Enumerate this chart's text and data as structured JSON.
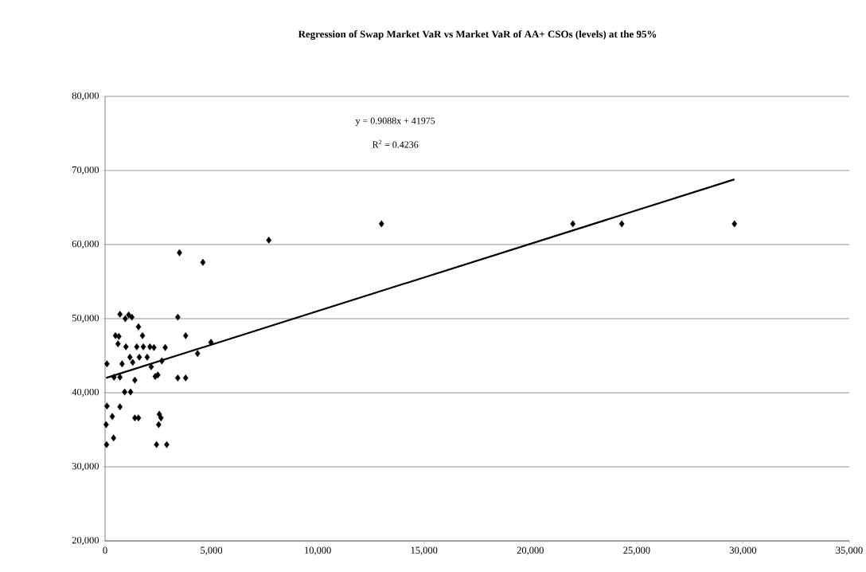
{
  "chart_data": {
    "type": "scatter",
    "title": "Regression of Swap Market VaR vs Market VaR of AA+ CSOs (levels) at the 95%",
    "annotations": [
      "y = 0.9088x + 41975",
      "R$^{2}$ = 0.4236"
    ],
    "series": [
      {
        "color": "#000000",
        "marker": "diamond",
        "x": [
          700,
          1110,
          950,
          1260,
          3420,
          1570,
          490,
          650,
          3790,
          1760,
          610,
          980,
          1490,
          1800,
          2110,
          2300,
          2830,
          4980,
          1170,
          1610,
          1980,
          4350,
          90,
          800,
          1300,
          2670,
          2170,
          420,
          700,
          2360,
          2480,
          3420,
          3790,
          1400,
          920,
          1200,
          90,
          700,
          340,
          1400,
          1570,
          2550,
          2630,
          50,
          2520,
          400,
          70,
          2420,
          2900,
          3500,
          4600,
          7700,
          13000,
          22000,
          24300,
          29600
        ],
        "values": [
          50600,
          50500,
          50000,
          50200,
          50200,
          48900,
          47700,
          47600,
          47700,
          47700,
          46600,
          46200,
          46200,
          46200,
          46200,
          46100,
          46100,
          46800,
          44800,
          44800,
          44800,
          45300,
          43900,
          43900,
          44100,
          44300,
          43500,
          42100,
          42100,
          42200,
          42400,
          42000,
          42000,
          41700,
          40100,
          40100,
          38200,
          38100,
          36800,
          36600,
          36600,
          37100,
          36600,
          35700,
          35700,
          33900,
          33000,
          33000,
          33000,
          58900,
          57600,
          60600,
          62800,
          62800,
          62800,
          62800
        ]
      },
      {
        "type": "line",
        "color": "#000000",
        "marker": "none",
        "x": [
          50,
          29600
        ],
        "values": [
          42000,
          68800
        ]
      }
    ],
    "xlim": [
      0,
      35000
    ],
    "ylim": [
      20000,
      80000
    ],
    "xticks": [
      0,
      {
        "value": 5000,
        "label": "5,000"
      },
      {
        "value": 10000,
        "label": "10,000"
      },
      {
        "value": 15000,
        "label": "15,000"
      },
      {
        "value": 20000,
        "label": "20,000"
      },
      {
        "value": 25000,
        "label": "25,000"
      },
      {
        "value": 30000,
        "label": "30,000"
      },
      {
        "value": 35000,
        "label": "35,000"
      }
    ],
    "yticks": [
      {
        "value": 20000,
        "label": "20,000"
      },
      {
        "value": 30000,
        "label": "30,000"
      },
      {
        "value": 40000,
        "label": "40,000"
      },
      {
        "value": 50000,
        "label": "50,000"
      },
      {
        "value": 60000,
        "label": "60,000"
      },
      {
        "value": 70000,
        "label": "70,000"
      },
      {
        "value": 80000,
        "label": "80,000"
      }
    ],
    "grid": "y"
  }
}
